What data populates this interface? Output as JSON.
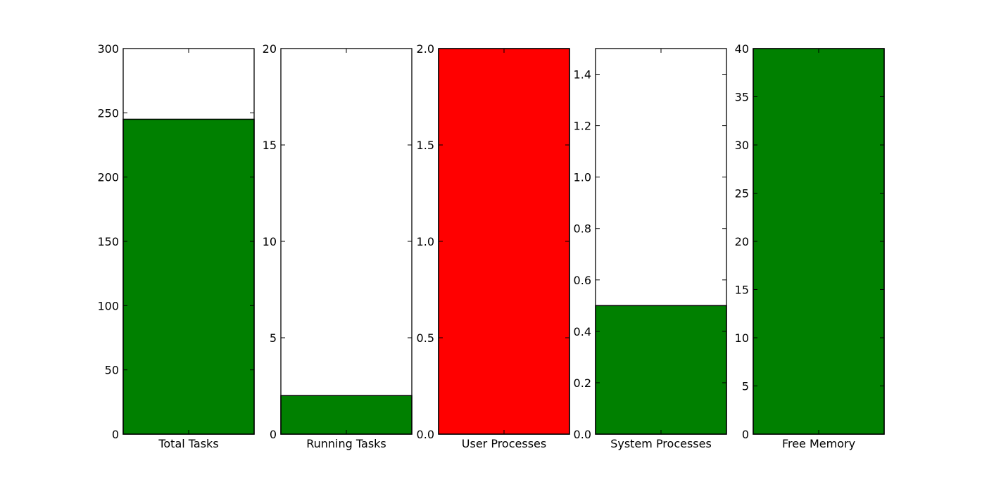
{
  "chart_data": [
    {
      "type": "bar",
      "categories": [
        "Total Tasks"
      ],
      "values": [
        245
      ],
      "ylim": [
        0,
        300
      ],
      "yticks": [
        0,
        50,
        100,
        150,
        200,
        250,
        300
      ],
      "yticklabels": [
        "0",
        "50",
        "100",
        "150",
        "200",
        "250",
        "300"
      ],
      "color": "#008000"
    },
    {
      "type": "bar",
      "categories": [
        "Running Tasks"
      ],
      "values": [
        2
      ],
      "ylim": [
        0,
        20
      ],
      "yticks": [
        0,
        5,
        10,
        15,
        20
      ],
      "yticklabels": [
        "0",
        "5",
        "10",
        "15",
        "20"
      ],
      "color": "#008000"
    },
    {
      "type": "bar",
      "categories": [
        "User Processes"
      ],
      "values": [
        2.0
      ],
      "ylim": [
        0,
        2.0
      ],
      "yticks": [
        0,
        0.5,
        1.0,
        1.5,
        2.0
      ],
      "yticklabels": [
        "0.0",
        "0.5",
        "1.0",
        "1.5",
        "2.0"
      ],
      "color": "#ff0000"
    },
    {
      "type": "bar",
      "categories": [
        "System Processes"
      ],
      "values": [
        0.5
      ],
      "ylim": [
        0,
        1.5
      ],
      "yticks": [
        0,
        0.2,
        0.4,
        0.6,
        0.8,
        1.0,
        1.2,
        1.4
      ],
      "yticklabels": [
        "0.0",
        "0.2",
        "0.4",
        "0.6",
        "0.8",
        "1.0",
        "1.2",
        "1.4"
      ],
      "color": "#008000"
    },
    {
      "type": "bar",
      "categories": [
        "Free Memory"
      ],
      "values": [
        40
      ],
      "ylim": [
        0,
        40
      ],
      "yticks": [
        0,
        5,
        10,
        15,
        20,
        25,
        30,
        35,
        40
      ],
      "yticklabels": [
        "0",
        "5",
        "10",
        "15",
        "20",
        "25",
        "30",
        "35",
        "40"
      ],
      "color": "#008000"
    }
  ]
}
